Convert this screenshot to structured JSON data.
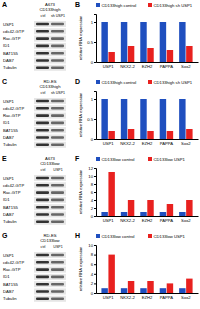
{
  "blots": [
    {
      "letter": "A",
      "header": [
        "A673",
        "CD133high"
      ],
      "lanes": [
        "ctrl",
        "sh USP1"
      ],
      "rows": [
        "USP1",
        "cdc42-GTP",
        "Rac-GTP",
        "ID1",
        "BAT155",
        "DAB7",
        "Tubulin"
      ]
    },
    {
      "letter": "C",
      "header": [
        "RD-ES",
        "CD133high"
      ],
      "lanes": [
        "ctrl",
        "sh USP1"
      ],
      "rows": [
        "USP1",
        "cdc42-GTP",
        "Rac-GTP",
        "ID1",
        "BAT155",
        "DAB7",
        "Tubulin"
      ]
    },
    {
      "letter": "E",
      "header": [
        "A673",
        "CD133low"
      ],
      "lanes": [
        "ctrl",
        "USP1"
      ],
      "rows": [
        "USP1",
        "cdc42-GTP",
        "Rac-GTP",
        "ID1",
        "BAT155",
        "DAB7",
        "Tubulin"
      ]
    },
    {
      "letter": "G",
      "header": [
        "RD-ES",
        "CD133low"
      ],
      "lanes": [
        "ctrl",
        "USP1"
      ],
      "rows": [
        "USP1",
        "cdc42-GTP",
        "Rac-GTP",
        "ID1",
        "BAT155",
        "DAB7",
        "Tubulin"
      ]
    }
  ],
  "chart_data": [
    {
      "type": "bar",
      "title": "B",
      "y_label": "relative RNA expression",
      "categories": [
        "USP1",
        "NKX2-2",
        "EZH2",
        "PAPPA",
        "Sox2"
      ],
      "series": [
        {
          "name": "CD133high control",
          "color": "#1f4fbf",
          "values": [
            1,
            1,
            1,
            1,
            1
          ]
        },
        {
          "name": "CD133high sh USP1",
          "color": "#e8211f",
          "values": [
            0.25,
            0.4,
            0.35,
            0.3,
            0.4
          ]
        }
      ],
      "ylim": [
        0,
        1.2
      ],
      "yticks": [
        0,
        0.5,
        1
      ],
      "legend": "top"
    },
    {
      "type": "bar",
      "title": "D",
      "y_label": "relative RNA expression",
      "categories": [
        "USP1",
        "NKX2-2",
        "EZH2",
        "PAPPA",
        "Sox2"
      ],
      "series": [
        {
          "name": "CD133high control",
          "color": "#1f4fbf",
          "values": [
            1,
            1,
            1,
            1,
            1
          ]
        },
        {
          "name": "CD133high sh USP1",
          "color": "#e8211f",
          "values": [
            0.2,
            0.25,
            0.2,
            0.2,
            0.25
          ]
        }
      ],
      "ylim": [
        0,
        1.2
      ],
      "yticks": [
        0,
        0.5,
        1
      ],
      "legend": "top"
    },
    {
      "type": "bar",
      "title": "F",
      "y_label": "relative RNA expression",
      "categories": [
        "USP1",
        "NKX2-2",
        "EZH2",
        "PAPPA",
        "Sox2"
      ],
      "series": [
        {
          "name": "CD133low control",
          "color": "#1f4fbf",
          "values": [
            1,
            1,
            1,
            1,
            1
          ]
        },
        {
          "name": "CD133low USP1",
          "color": "#e8211f",
          "values": [
            11,
            4,
            4,
            3,
            4
          ]
        }
      ],
      "ylim": [
        0,
        12
      ],
      "yticks": [
        0,
        2,
        4,
        6,
        8,
        10,
        12
      ],
      "legend": "top"
    },
    {
      "type": "bar",
      "title": "H",
      "y_label": "relative RNA expression",
      "categories": [
        "USP1",
        "NKX2-2",
        "EZH2",
        "PAPPA",
        "Sox2"
      ],
      "series": [
        {
          "name": "CD133low control",
          "color": "#1f4fbf",
          "values": [
            1,
            1,
            1,
            1,
            1
          ]
        },
        {
          "name": "CD133low USP1",
          "color": "#e8211f",
          "values": [
            8,
            2.5,
            2.5,
            2,
            3
          ]
        }
      ],
      "ylim": [
        0,
        10
      ],
      "yticks": [
        0,
        2,
        4,
        6,
        8,
        10
      ],
      "legend": "top"
    }
  ]
}
